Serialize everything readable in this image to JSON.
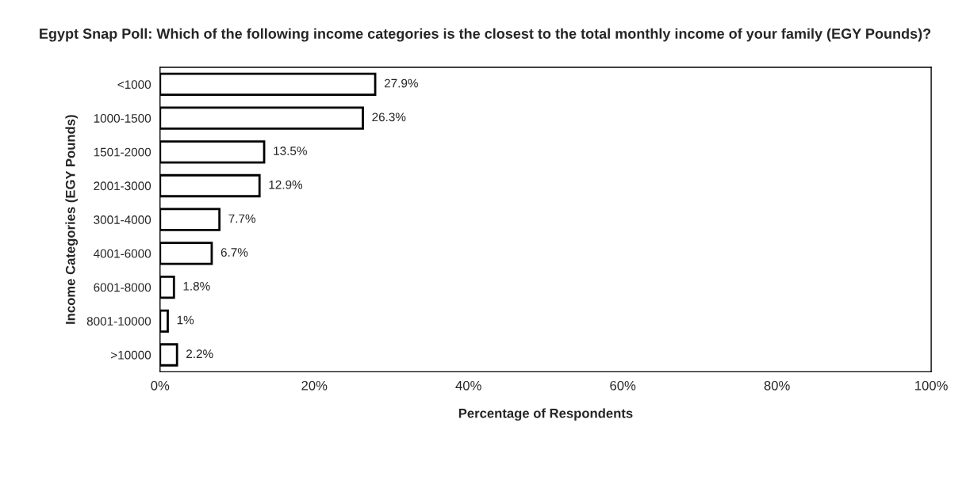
{
  "chart_data": {
    "type": "bar",
    "orientation": "horizontal",
    "title": "Egypt Snap Poll: Which of the following income categories is the closest to the total monthly income of your family (EGY Pounds)?",
    "xlabel": "Percentage of Respondents",
    "ylabel": "Income Categories (EGY Pounds)",
    "categories": [
      "<1000",
      "1000-1500",
      "1501-2000",
      "2001-3000",
      "3001-4000",
      "4001-6000",
      "6001-8000",
      "8001-10000",
      ">10000"
    ],
    "values": [
      27.9,
      26.3,
      13.5,
      12.9,
      7.7,
      6.7,
      1.8,
      1,
      2.2
    ],
    "value_labels": [
      "27.9%",
      "26.3%",
      "13.5%",
      "12.9%",
      "7.7%",
      "6.7%",
      "1.8%",
      "1%",
      "2.2%"
    ],
    "color": "#ffffff",
    "xlim": [
      0,
      100
    ],
    "xticks": [
      {
        "value": 0,
        "label": "0%"
      },
      {
        "value": 20,
        "label": "20%"
      },
      {
        "value": 40,
        "label": "40%"
      },
      {
        "value": 60,
        "label": "60%"
      },
      {
        "value": 80,
        "label": "80%"
      },
      {
        "value": 100,
        "label": "100%"
      }
    ],
    "grid": false,
    "legend": false
  }
}
